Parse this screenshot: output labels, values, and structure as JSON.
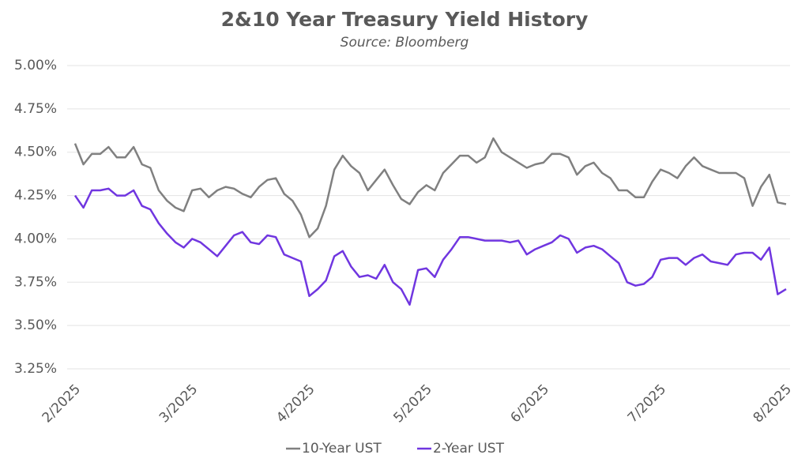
{
  "chart_data": {
    "type": "line",
    "title": "2&10 Year Treasury Yield History",
    "subtitle": "Source: Bloomberg",
    "categories": [
      "2/2025",
      null,
      null,
      null,
      null,
      null,
      null,
      null,
      null,
      null,
      null,
      null,
      null,
      null,
      "3/2025",
      null,
      null,
      null,
      null,
      null,
      null,
      null,
      null,
      null,
      null,
      null,
      null,
      null,
      "4/2025",
      null,
      null,
      null,
      null,
      null,
      null,
      null,
      null,
      null,
      null,
      null,
      null,
      null,
      "5/2025",
      null,
      null,
      null,
      null,
      null,
      null,
      null,
      null,
      null,
      null,
      null,
      null,
      null,
      "6/2025",
      null,
      null,
      null,
      null,
      null,
      null,
      null,
      null,
      null,
      null,
      null,
      null,
      null,
      "7/2025",
      null,
      null,
      null,
      null,
      null,
      null,
      null,
      null,
      null,
      null,
      null,
      null,
      null,
      null,
      "8/2025"
    ],
    "series": [
      {
        "name": "10-Year UST",
        "color": "#808080",
        "values": [
          4.55,
          4.43,
          4.49,
          4.49,
          4.53,
          4.47,
          4.47,
          4.53,
          4.43,
          4.41,
          4.28,
          4.22,
          4.18,
          4.16,
          4.28,
          4.29,
          4.24,
          4.28,
          4.3,
          4.29,
          4.26,
          4.24,
          4.3,
          4.34,
          4.35,
          4.26,
          4.22,
          4.14,
          4.01,
          4.06,
          4.19,
          4.4,
          4.48,
          4.42,
          4.38,
          4.28,
          4.34,
          4.4,
          4.31,
          4.23,
          4.2,
          4.27,
          4.31,
          4.28,
          4.38,
          4.43,
          4.48,
          4.48,
          4.44,
          4.47,
          4.58,
          4.5,
          4.47,
          4.44,
          4.41,
          4.43,
          4.44,
          4.49,
          4.49,
          4.47,
          4.37,
          4.42,
          4.44,
          4.38,
          4.35,
          4.28,
          4.28,
          4.24,
          4.24,
          4.33,
          4.4,
          4.38,
          4.35,
          4.42,
          4.47,
          4.42,
          4.4,
          4.38,
          4.38,
          4.38,
          4.35,
          4.19,
          4.3,
          4.37,
          4.21,
          4.2
        ]
      },
      {
        "name": "2-Year UST",
        "color": "#7036e0",
        "values": [
          4.25,
          4.18,
          4.28,
          4.28,
          4.29,
          4.25,
          4.25,
          4.28,
          4.19,
          4.17,
          4.09,
          4.03,
          3.98,
          3.95,
          4.0,
          3.98,
          3.94,
          3.9,
          3.96,
          4.02,
          4.04,
          3.98,
          3.97,
          4.02,
          4.01,
          3.91,
          3.89,
          3.87,
          3.67,
          3.71,
          3.76,
          3.9,
          3.93,
          3.84,
          3.78,
          3.79,
          3.77,
          3.85,
          3.75,
          3.71,
          3.62,
          3.82,
          3.83,
          3.78,
          3.88,
          3.94,
          4.01,
          4.01,
          4.0,
          3.99,
          3.99,
          3.99,
          3.98,
          3.99,
          3.91,
          3.94,
          3.96,
          3.98,
          4.02,
          4.0,
          3.92,
          3.95,
          3.96,
          3.94,
          3.9,
          3.86,
          3.75,
          3.73,
          3.74,
          3.78,
          3.88,
          3.89,
          3.89,
          3.85,
          3.89,
          3.91,
          3.87,
          3.86,
          3.85,
          3.91,
          3.92,
          3.92,
          3.88,
          3.95,
          3.68,
          3.71
        ]
      }
    ],
    "ylim": [
      3.25,
      5.0
    ],
    "yticks": [
      {
        "value": 3.25,
        "label": "3.25%"
      },
      {
        "value": 3.5,
        "label": "3.50%"
      },
      {
        "value": 3.75,
        "label": "3.75%"
      },
      {
        "value": 4.0,
        "label": "4.00%"
      },
      {
        "value": 4.25,
        "label": "4.25%"
      },
      {
        "value": 4.5,
        "label": "4.50%"
      },
      {
        "value": 4.75,
        "label": "4.75%"
      },
      {
        "value": 5.0,
        "label": "5.00%"
      }
    ],
    "grid": true,
    "legend": "bottom"
  }
}
